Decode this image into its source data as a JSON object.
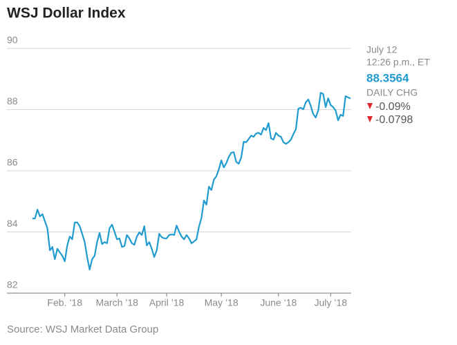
{
  "chart_data": {
    "type": "line",
    "title": "WSJ Dollar Index",
    "source": "Source: WSJ Market Data Group",
    "annotations": {
      "date": "July 12",
      "time": "12:26 p.m., ET",
      "value": "88.3564",
      "change_label": "DAILY CHG",
      "change_pct": "-0.09%",
      "change": "-0.0798"
    },
    "color": "#1f9bcf",
    "grid": true,
    "ylim": [
      82,
      90
    ],
    "yticks": [
      82,
      84,
      86,
      88,
      90
    ],
    "categories": [
      null,
      null,
      null,
      null,
      null,
      null,
      null,
      null,
      null,
      null,
      null,
      null,
      null,
      "Feb. ’18",
      null,
      null,
      null,
      null,
      null,
      null,
      null,
      null,
      null,
      null,
      null,
      null,
      null,
      null,
      null,
      null,
      null,
      null,
      null,
      null,
      "March ’18",
      null,
      null,
      null,
      null,
      null,
      null,
      null,
      null,
      null,
      null,
      null,
      null,
      null,
      null,
      null,
      null,
      null,
      null,
      null,
      "April ’18",
      null,
      null,
      null,
      null,
      null,
      null,
      null,
      null,
      null,
      null,
      null,
      null,
      null,
      null,
      null,
      null,
      null,
      null,
      null,
      null,
      null,
      "May ’18",
      null,
      null,
      null,
      null,
      null,
      null,
      null,
      null,
      null,
      null,
      null,
      null,
      null,
      null,
      null,
      null,
      null,
      null,
      null,
      null,
      null,
      null,
      "June ’18",
      null,
      null,
      null,
      null,
      null,
      null,
      null,
      null,
      null,
      null,
      null,
      null,
      null,
      null,
      null,
      null,
      null,
      null,
      null,
      null,
      "July ’18",
      null,
      null,
      null,
      null,
      null,
      null,
      null,
      null
    ],
    "values": [
      84.44,
      84.44,
      84.73,
      84.51,
      84.58,
      84.35,
      84.12,
      83.4,
      83.51,
      83.11,
      83.45,
      83.33,
      83.22,
      83.04,
      83.56,
      83.85,
      83.76,
      84.31,
      84.31,
      84.19,
      83.94,
      83.67,
      83.18,
      82.77,
      83.11,
      83.22,
      83.67,
      83.97,
      83.6,
      83.67,
      83.63,
      84.12,
      84.24,
      84.01,
      83.76,
      83.79,
      83.51,
      83.54,
      83.9,
      83.79,
      83.63,
      83.58,
      83.85,
      83.99,
      83.9,
      84.19,
      83.56,
      83.67,
      83.45,
      83.18,
      83.4,
      83.94,
      83.83,
      83.79,
      83.79,
      83.9,
      83.92,
      83.9,
      84.21,
      84.01,
      83.85,
      83.76,
      83.9,
      83.79,
      83.63,
      83.69,
      83.76,
      84.17,
      84.46,
      85.03,
      84.89,
      85.48,
      85.37,
      85.71,
      85.82,
      86.05,
      86.34,
      86.11,
      86.25,
      86.45,
      86.59,
      86.61,
      86.29,
      86.23,
      86.43,
      86.95,
      86.93,
      87.04,
      87.15,
      87.11,
      87.22,
      87.24,
      87.18,
      87.4,
      87.33,
      87.56,
      87.06,
      87.02,
      87.24,
      87.15,
      87.11,
      86.93,
      86.88,
      86.93,
      87.02,
      87.2,
      87.36,
      88.03,
      88.06,
      88.01,
      88.24,
      88.33,
      88.12,
      87.85,
      87.74,
      87.97,
      88.55,
      88.51,
      88.08,
      88.37,
      88.15,
      88.08,
      87.97,
      87.65,
      87.83,
      87.79,
      88.44,
      88.4,
      88.36
    ]
  }
}
